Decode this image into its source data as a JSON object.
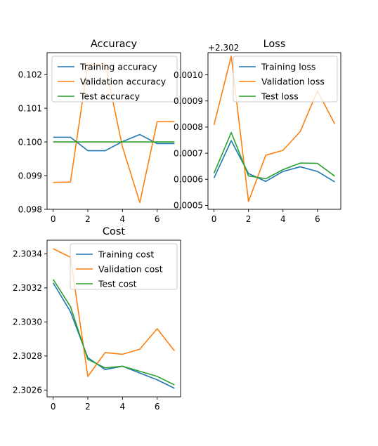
{
  "chart_data": [
    {
      "type": "line",
      "title": "Accuracy",
      "xlabel": "",
      "ylabel": "",
      "x": [
        0,
        1,
        2,
        3,
        4,
        5,
        6,
        7
      ],
      "xlim": [
        -0.35,
        7.35
      ],
      "ylim": [
        0.098,
        0.10265
      ],
      "xticks": [
        0,
        2,
        4,
        6
      ],
      "xtick_labels": [
        "0",
        "2",
        "4",
        "6"
      ],
      "yticks": [
        0.098,
        0.099,
        0.1,
        0.101,
        0.102
      ],
      "ytick_labels": [
        "0.098",
        "0.099",
        "0.100",
        "0.101",
        "0.102"
      ],
      "offset_label": "",
      "legend_loc": "upper-right",
      "grid": false,
      "series": [
        {
          "name": "Training accuracy",
          "color": "#1f77b4",
          "values": [
            0.10014,
            0.10014,
            0.09974,
            0.09974,
            0.10001,
            0.10022,
            0.09995,
            0.09995
          ]
        },
        {
          "name": "Validation accuracy",
          "color": "#ff7f0e",
          "values": [
            0.0988,
            0.09881,
            0.1023,
            0.1023,
            0.09985,
            0.0982,
            0.1006,
            0.1006
          ]
        },
        {
          "name": "Test accuracy",
          "color": "#2ca02c",
          "values": [
            0.1,
            0.1,
            0.1,
            0.1,
            0.1,
            0.1,
            0.1,
            0.1
          ]
        }
      ]
    },
    {
      "type": "line",
      "title": "Loss",
      "xlabel": "",
      "ylabel": "",
      "x": [
        0,
        1,
        2,
        3,
        4,
        5,
        6,
        7
      ],
      "xlim": [
        -0.35,
        7.35
      ],
      "ylim": [
        0.000485,
        0.001085
      ],
      "xticks": [
        0,
        2,
        4,
        6
      ],
      "xtick_labels": [
        "0",
        "2",
        "4",
        "6"
      ],
      "yticks": [
        0.0005,
        0.0006,
        0.0007,
        0.0008,
        0.0009,
        0.001
      ],
      "ytick_labels": [
        "0.0005",
        "0.0006",
        "0.0007",
        "0.0008",
        "0.0009",
        "0.0010"
      ],
      "offset_label": "+2.302",
      "legend_loc": "upper-right",
      "grid": false,
      "series": [
        {
          "name": "Training loss",
          "color": "#1f77b4",
          "values": [
            0.000605,
            0.000748,
            0.000622,
            0.000592,
            0.00063,
            0.000648,
            0.00063,
            0.00059
          ]
        },
        {
          "name": "Validation loss",
          "color": "#ff7f0e",
          "values": [
            0.000808,
            0.001072,
            0.000515,
            0.000692,
            0.000711,
            0.000783,
            0.000939,
            0.000812
          ]
        },
        {
          "name": "Test loss",
          "color": "#2ca02c",
          "values": [
            0.000623,
            0.000779,
            0.000613,
            0.000602,
            0.000637,
            0.000662,
            0.000661,
            0.000612
          ]
        }
      ]
    },
    {
      "type": "line",
      "title": "Cost",
      "xlabel": "",
      "ylabel": "",
      "x": [
        0,
        1,
        2,
        3,
        4,
        5,
        6,
        7
      ],
      "xlim": [
        -0.35,
        7.35
      ],
      "ylim": [
        2.30256,
        2.30348
      ],
      "xticks": [
        0,
        2,
        4,
        6
      ],
      "xtick_labels": [
        "0",
        "2",
        "4",
        "6"
      ],
      "yticks": [
        2.3026,
        2.3028,
        2.303,
        2.3032,
        2.3034
      ],
      "ytick_labels": [
        "2.3026",
        "2.3028",
        "2.3030",
        "2.3032",
        "2.3034"
      ],
      "offset_label": "",
      "legend_loc": "upper-right",
      "grid": false,
      "series": [
        {
          "name": "Training cost",
          "color": "#1f77b4",
          "values": [
            2.30323,
            2.30306,
            2.30279,
            2.30272,
            2.30274,
            2.3027,
            2.30266,
            2.30261
          ]
        },
        {
          "name": "Validation cost",
          "color": "#ff7f0e",
          "values": [
            2.30343,
            2.30338,
            2.30268,
            2.30282,
            2.30281,
            2.30284,
            2.30296,
            2.30283
          ]
        },
        {
          "name": "Test cost",
          "color": "#2ca02c",
          "values": [
            2.30325,
            2.30309,
            2.30278,
            2.30273,
            2.30274,
            2.30271,
            2.30268,
            2.30263
          ]
        }
      ]
    }
  ]
}
